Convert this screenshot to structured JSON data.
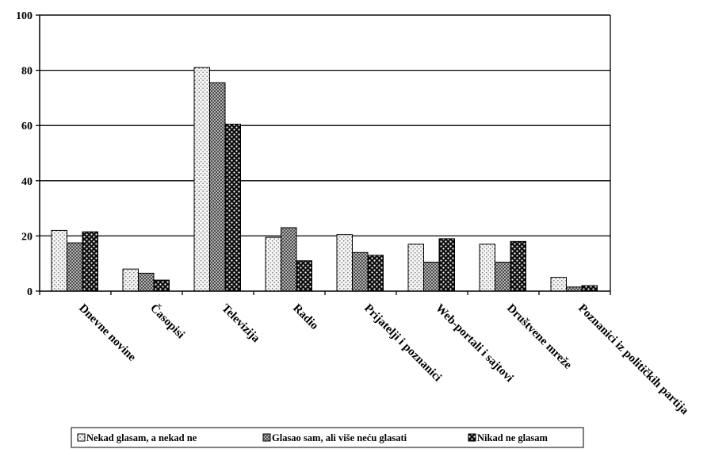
{
  "chart_data": {
    "type": "bar",
    "categories": [
      "Dnevne novine",
      "Časopisi",
      "Televizija",
      "Radio",
      "Prijatelji i poznanici",
      "Web-portali i sajtovi",
      "Društvene mreže",
      "Poznanici iz političkih partija"
    ],
    "series": [
      {
        "name": "Nekad glasam, a nekad ne",
        "values": [
          22,
          8,
          81,
          19.5,
          20.5,
          17,
          17,
          5
        ],
        "pattern": "light-dots",
        "color": "#f2f2f2"
      },
      {
        "name": "Glasao sam, ali više neću glasati",
        "values": [
          17.5,
          6.5,
          75.5,
          23,
          14,
          10.5,
          10.5,
          1.5
        ],
        "pattern": "crosshatch",
        "color": "#8c8c8c"
      },
      {
        "name": "Nikad ne glasam",
        "values": [
          21.5,
          4,
          60.5,
          11,
          13,
          19,
          18,
          2
        ],
        "pattern": "dark-dots",
        "color": "#1a1a1a"
      }
    ],
    "yticks": [
      0,
      20,
      40,
      60,
      80,
      100
    ],
    "ylim": [
      0,
      100
    ],
    "grid": true,
    "legend": "bottom"
  }
}
